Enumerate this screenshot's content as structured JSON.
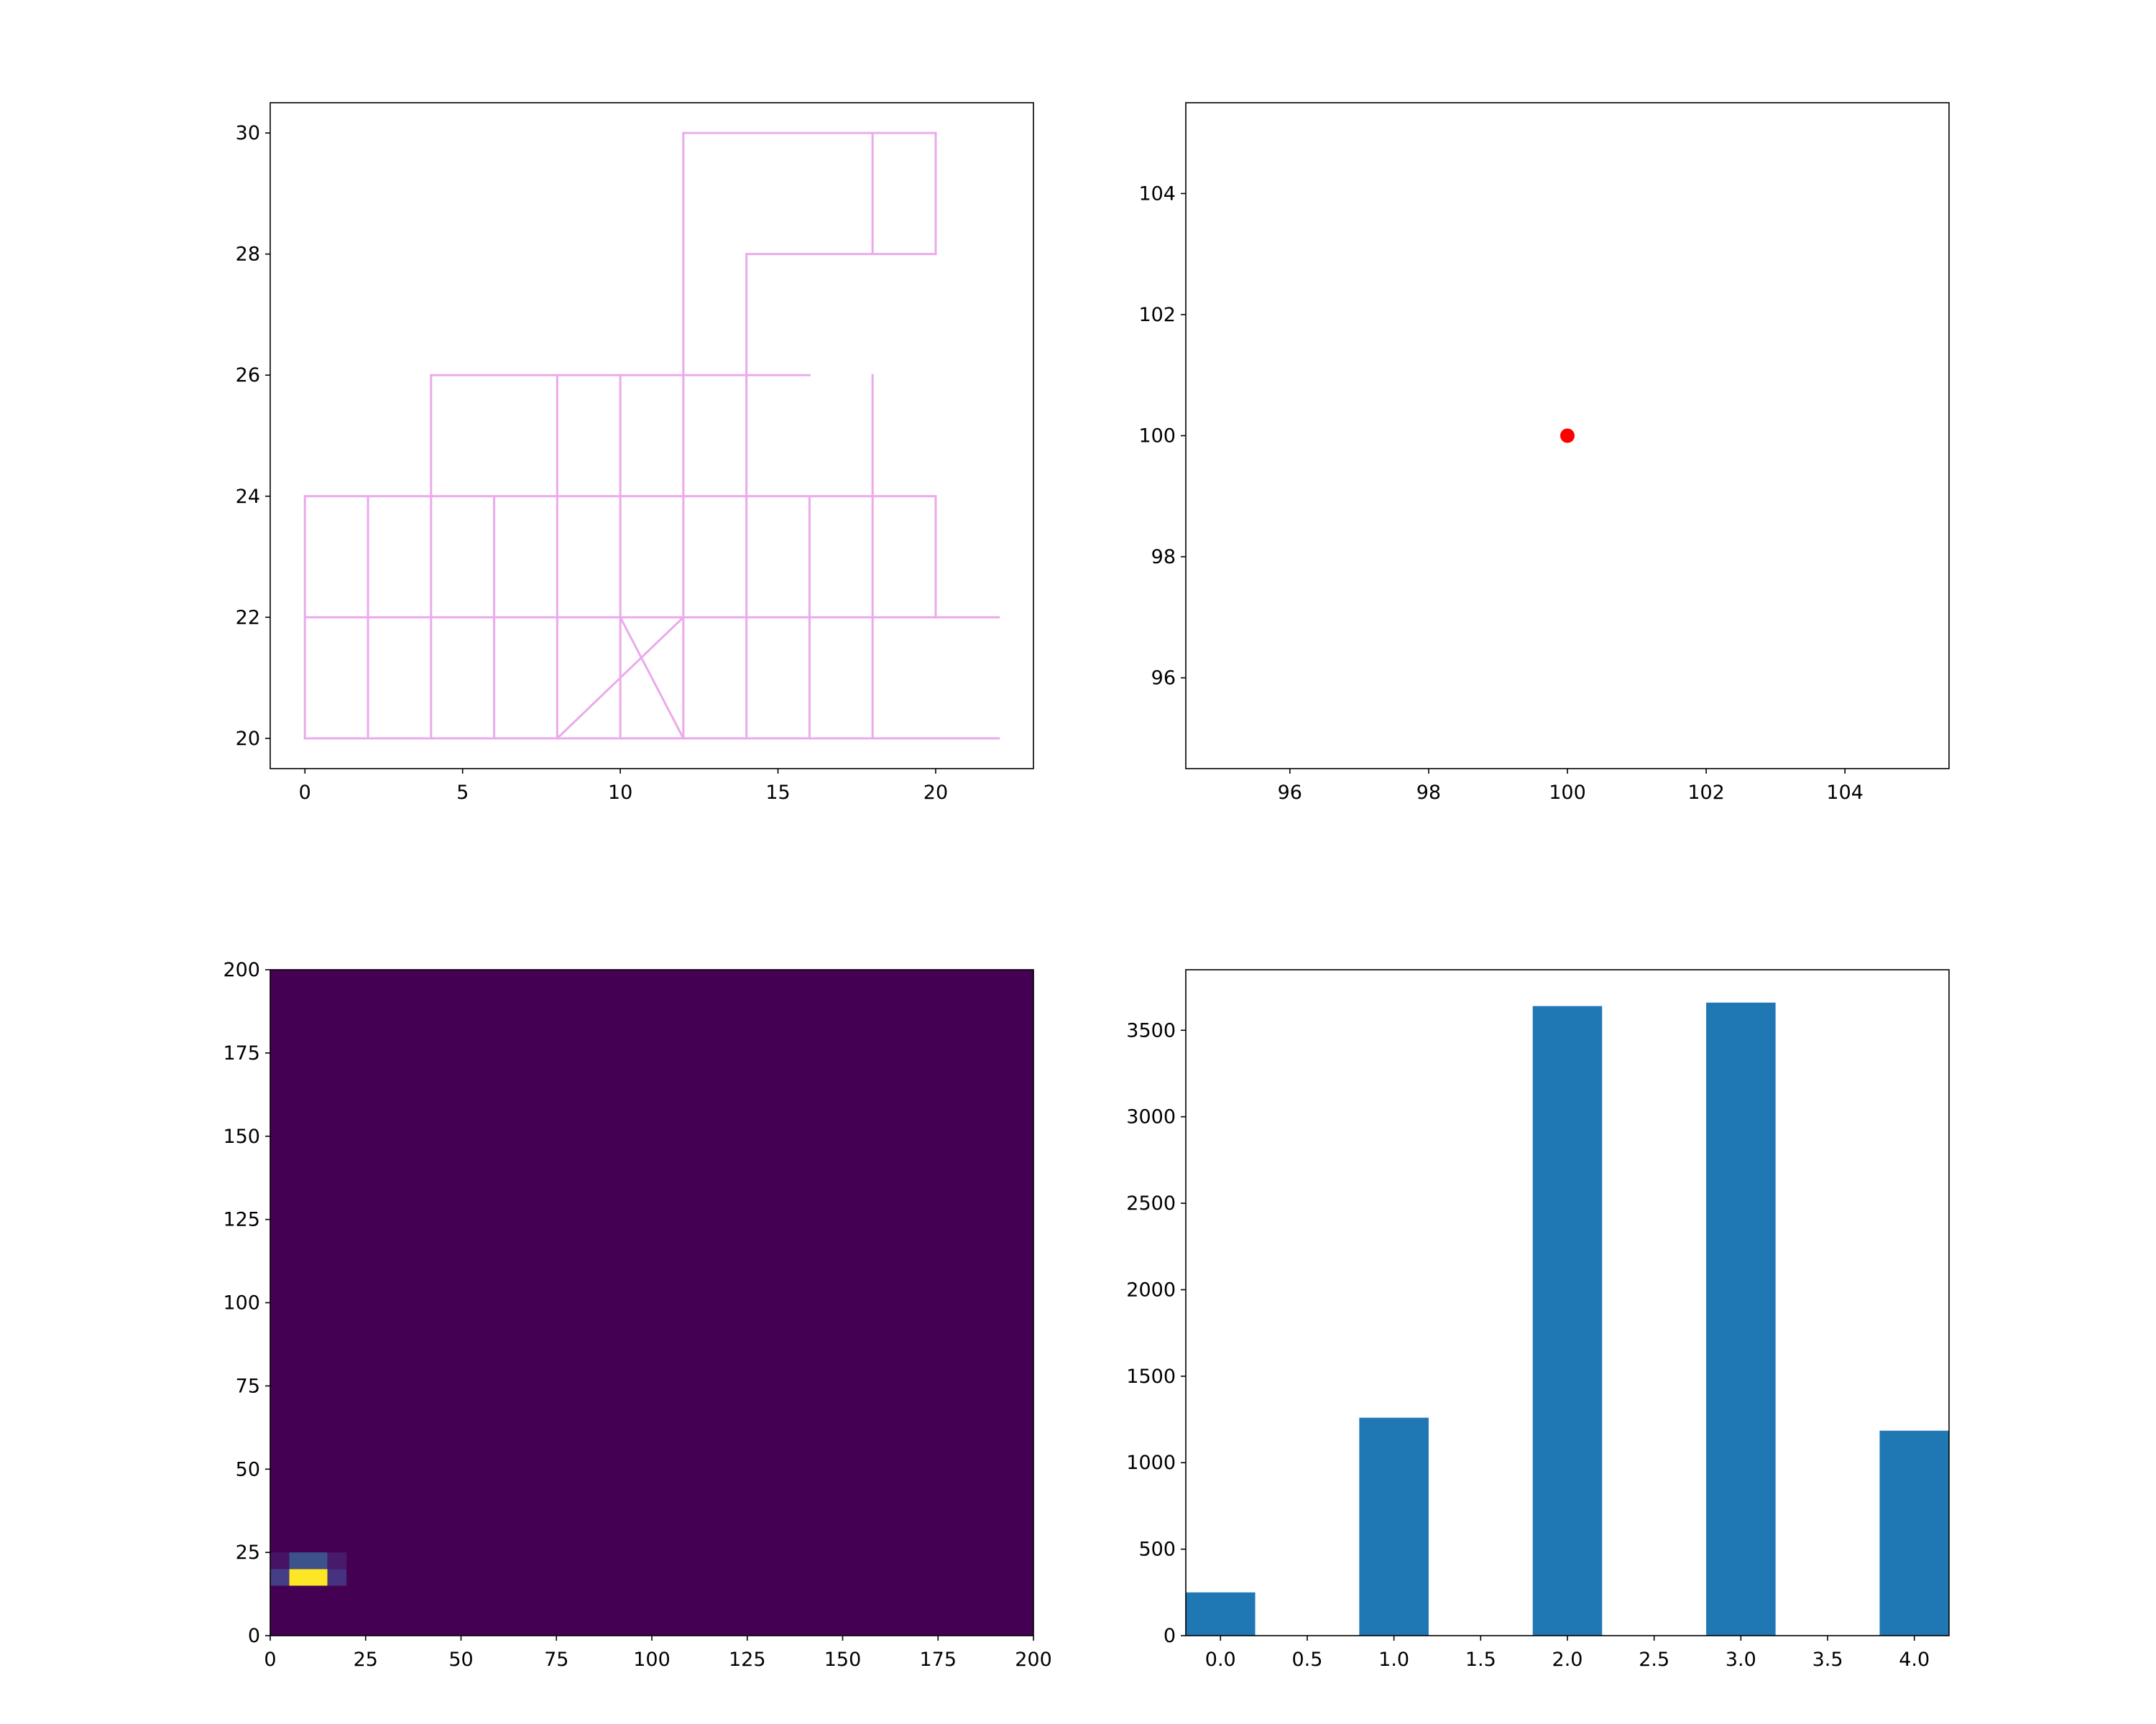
{
  "chart_data": [
    {
      "type": "line",
      "panel": "top-left",
      "title": "",
      "xlabel": "",
      "ylabel": "",
      "xlim": [
        -1.1,
        23.1
      ],
      "ylim": [
        19.5,
        30.5
      ],
      "xticks": [
        0,
        5,
        10,
        15,
        20
      ],
      "yticks": [
        20,
        22,
        24,
        26,
        28,
        30
      ],
      "grid": false,
      "color": "#ebaaeb",
      "segments": [
        [
          [
            0,
            20
          ],
          [
            22,
            20
          ]
        ],
        [
          [
            0,
            22
          ],
          [
            22,
            22
          ]
        ],
        [
          [
            0,
            24
          ],
          [
            20,
            24
          ]
        ],
        [
          [
            4,
            26
          ],
          [
            16,
            26
          ]
        ],
        [
          [
            14,
            28
          ],
          [
            20,
            28
          ]
        ],
        [
          [
            12,
            30
          ],
          [
            20,
            30
          ]
        ],
        [
          [
            0,
            20
          ],
          [
            0,
            24
          ]
        ],
        [
          [
            2,
            20
          ],
          [
            2,
            24
          ]
        ],
        [
          [
            4,
            20
          ],
          [
            4,
            26
          ]
        ],
        [
          [
            6,
            20
          ],
          [
            6,
            24
          ]
        ],
        [
          [
            8,
            20
          ],
          [
            8,
            26
          ]
        ],
        [
          [
            10,
            20
          ],
          [
            10,
            26
          ]
        ],
        [
          [
            12,
            20
          ],
          [
            12,
            30
          ]
        ],
        [
          [
            14,
            20
          ],
          [
            14,
            28
          ]
        ],
        [
          [
            16,
            20
          ],
          [
            16,
            24
          ]
        ],
        [
          [
            18,
            20
          ],
          [
            18,
            26
          ]
        ],
        [
          [
            20,
            22
          ],
          [
            20,
            24
          ]
        ],
        [
          [
            18,
            28
          ],
          [
            18,
            30
          ]
        ],
        [
          [
            20,
            28
          ],
          [
            20,
            30
          ]
        ],
        [
          [
            8,
            20
          ],
          [
            12,
            22
          ]
        ],
        [
          [
            10,
            22
          ],
          [
            12,
            20
          ]
        ]
      ]
    },
    {
      "type": "scatter",
      "panel": "top-right",
      "title": "",
      "xlabel": "",
      "ylabel": "",
      "xlim": [
        94.5,
        105.5
      ],
      "ylim": [
        94.5,
        105.5
      ],
      "xticks": [
        96,
        98,
        100,
        102,
        104
      ],
      "yticks": [
        96,
        98,
        100,
        102,
        104
      ],
      "grid": false,
      "color": "#ff0000",
      "points": [
        [
          100,
          100
        ]
      ]
    },
    {
      "type": "heatmap",
      "panel": "bottom-left",
      "title": "",
      "xlabel": "",
      "ylabel": "",
      "xlim": [
        0,
        200
      ],
      "ylim": [
        0,
        200
      ],
      "xticks": [
        0,
        25,
        50,
        75,
        100,
        125,
        150,
        175,
        200
      ],
      "yticks": [
        0,
        25,
        50,
        75,
        100,
        125,
        150,
        175,
        200
      ],
      "grid": false,
      "background_color": "#440154",
      "cells": [
        {
          "x0": 0,
          "x1": 5,
          "y0": 15,
          "y1": 20,
          "color": "#433e85"
        },
        {
          "x0": 5,
          "x1": 15,
          "y0": 15,
          "y1": 20,
          "color": "#fde725"
        },
        {
          "x0": 15,
          "x1": 20,
          "y0": 15,
          "y1": 20,
          "color": "#46327e"
        },
        {
          "x0": 0,
          "x1": 5,
          "y0": 20,
          "y1": 25,
          "color": "#471365"
        },
        {
          "x0": 5,
          "x1": 15,
          "y0": 20,
          "y1": 25,
          "color": "#3b528b"
        },
        {
          "x0": 15,
          "x1": 20,
          "y0": 20,
          "y1": 25,
          "color": "#481a6c"
        }
      ]
    },
    {
      "type": "bar",
      "panel": "bottom-right",
      "title": "",
      "xlabel": "",
      "ylabel": "",
      "xlim": [
        -0.2,
        4.2
      ],
      "ylim": [
        0,
        3850
      ],
      "xticks": [
        "0.0",
        "0.5",
        "1.0",
        "1.5",
        "2.0",
        "2.5",
        "3.0",
        "3.5",
        "4.0"
      ],
      "yticks": [
        "0",
        "500",
        "1000",
        "1500",
        "2000",
        "2500",
        "3000",
        "3500"
      ],
      "grid": false,
      "color": "#1f77b4",
      "bar_width": 0.4,
      "bars": [
        {
          "x": 0.0,
          "value": 250
        },
        {
          "x": 1.0,
          "value": 1260
        },
        {
          "x": 2.0,
          "value": 3640
        },
        {
          "x": 3.0,
          "value": 3660
        },
        {
          "x": 4.0,
          "value": 1185
        }
      ]
    }
  ]
}
